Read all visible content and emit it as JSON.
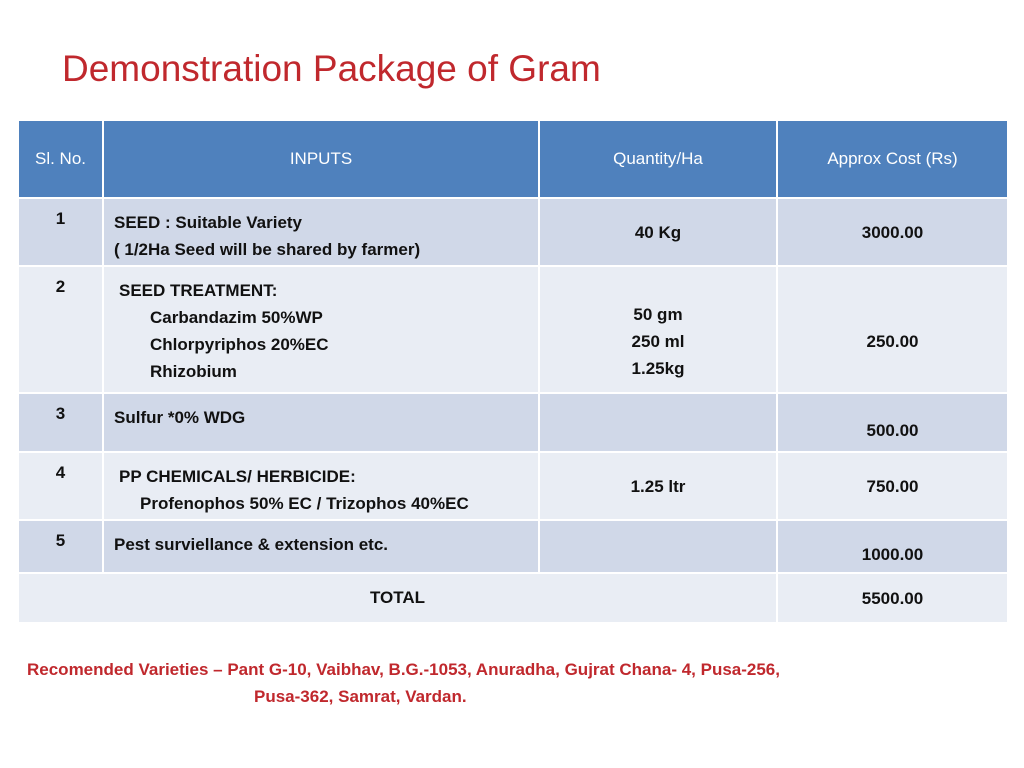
{
  "title": "Demonstration Package of Gram",
  "table": {
    "headers": [
      "Sl. No.",
      "INPUTS",
      "Quantity/Ha",
      "Approx  Cost (Rs)"
    ],
    "rows": [
      {
        "sl": "1",
        "inputs": [
          "SEED : Suitable Variety",
          "( 1/2Ha Seed will be shared by farmer)"
        ],
        "quantity": [
          "40 Kg"
        ],
        "cost": "3000.00"
      },
      {
        "sl": "2",
        "inputs": [
          "SEED TREATMENT:",
          "Carbandazim  50%WP",
          "Chlorpyriphos 20%EC",
          "Rhizobium"
        ],
        "quantity": [
          "50 gm",
          "250 ml",
          "1.25kg"
        ],
        "cost": "250.00"
      },
      {
        "sl": "3",
        "inputs": [
          "Sulfur *0% WDG"
        ],
        "quantity": [],
        "cost": "500.00"
      },
      {
        "sl": "4",
        "inputs": [
          "PP CHEMICALS/ HERBICIDE:",
          "Profenophos 50% EC / Trizophos 40%EC"
        ],
        "quantity": [
          "1.25 ltr"
        ],
        "cost": "750.00"
      },
      {
        "sl": "5",
        "inputs": [
          "Pest surviellance & extension etc."
        ],
        "quantity": [],
        "cost": "1000.00"
      }
    ],
    "total_label": "TOTAL",
    "total_cost": "5500.00"
  },
  "note": {
    "line1": "Recomended Varieties – Pant G-10, Vaibhav, B.G.-1053, Anuradha, Gujrat Chana- 4, Pusa-256,",
    "line2": "Pusa-362, Samrat, Vardan."
  },
  "colors": {
    "title": "#c0282d",
    "header_bg": "#4f81bd",
    "row_dark": "#d0d8e8",
    "row_light": "#e9edf4"
  }
}
